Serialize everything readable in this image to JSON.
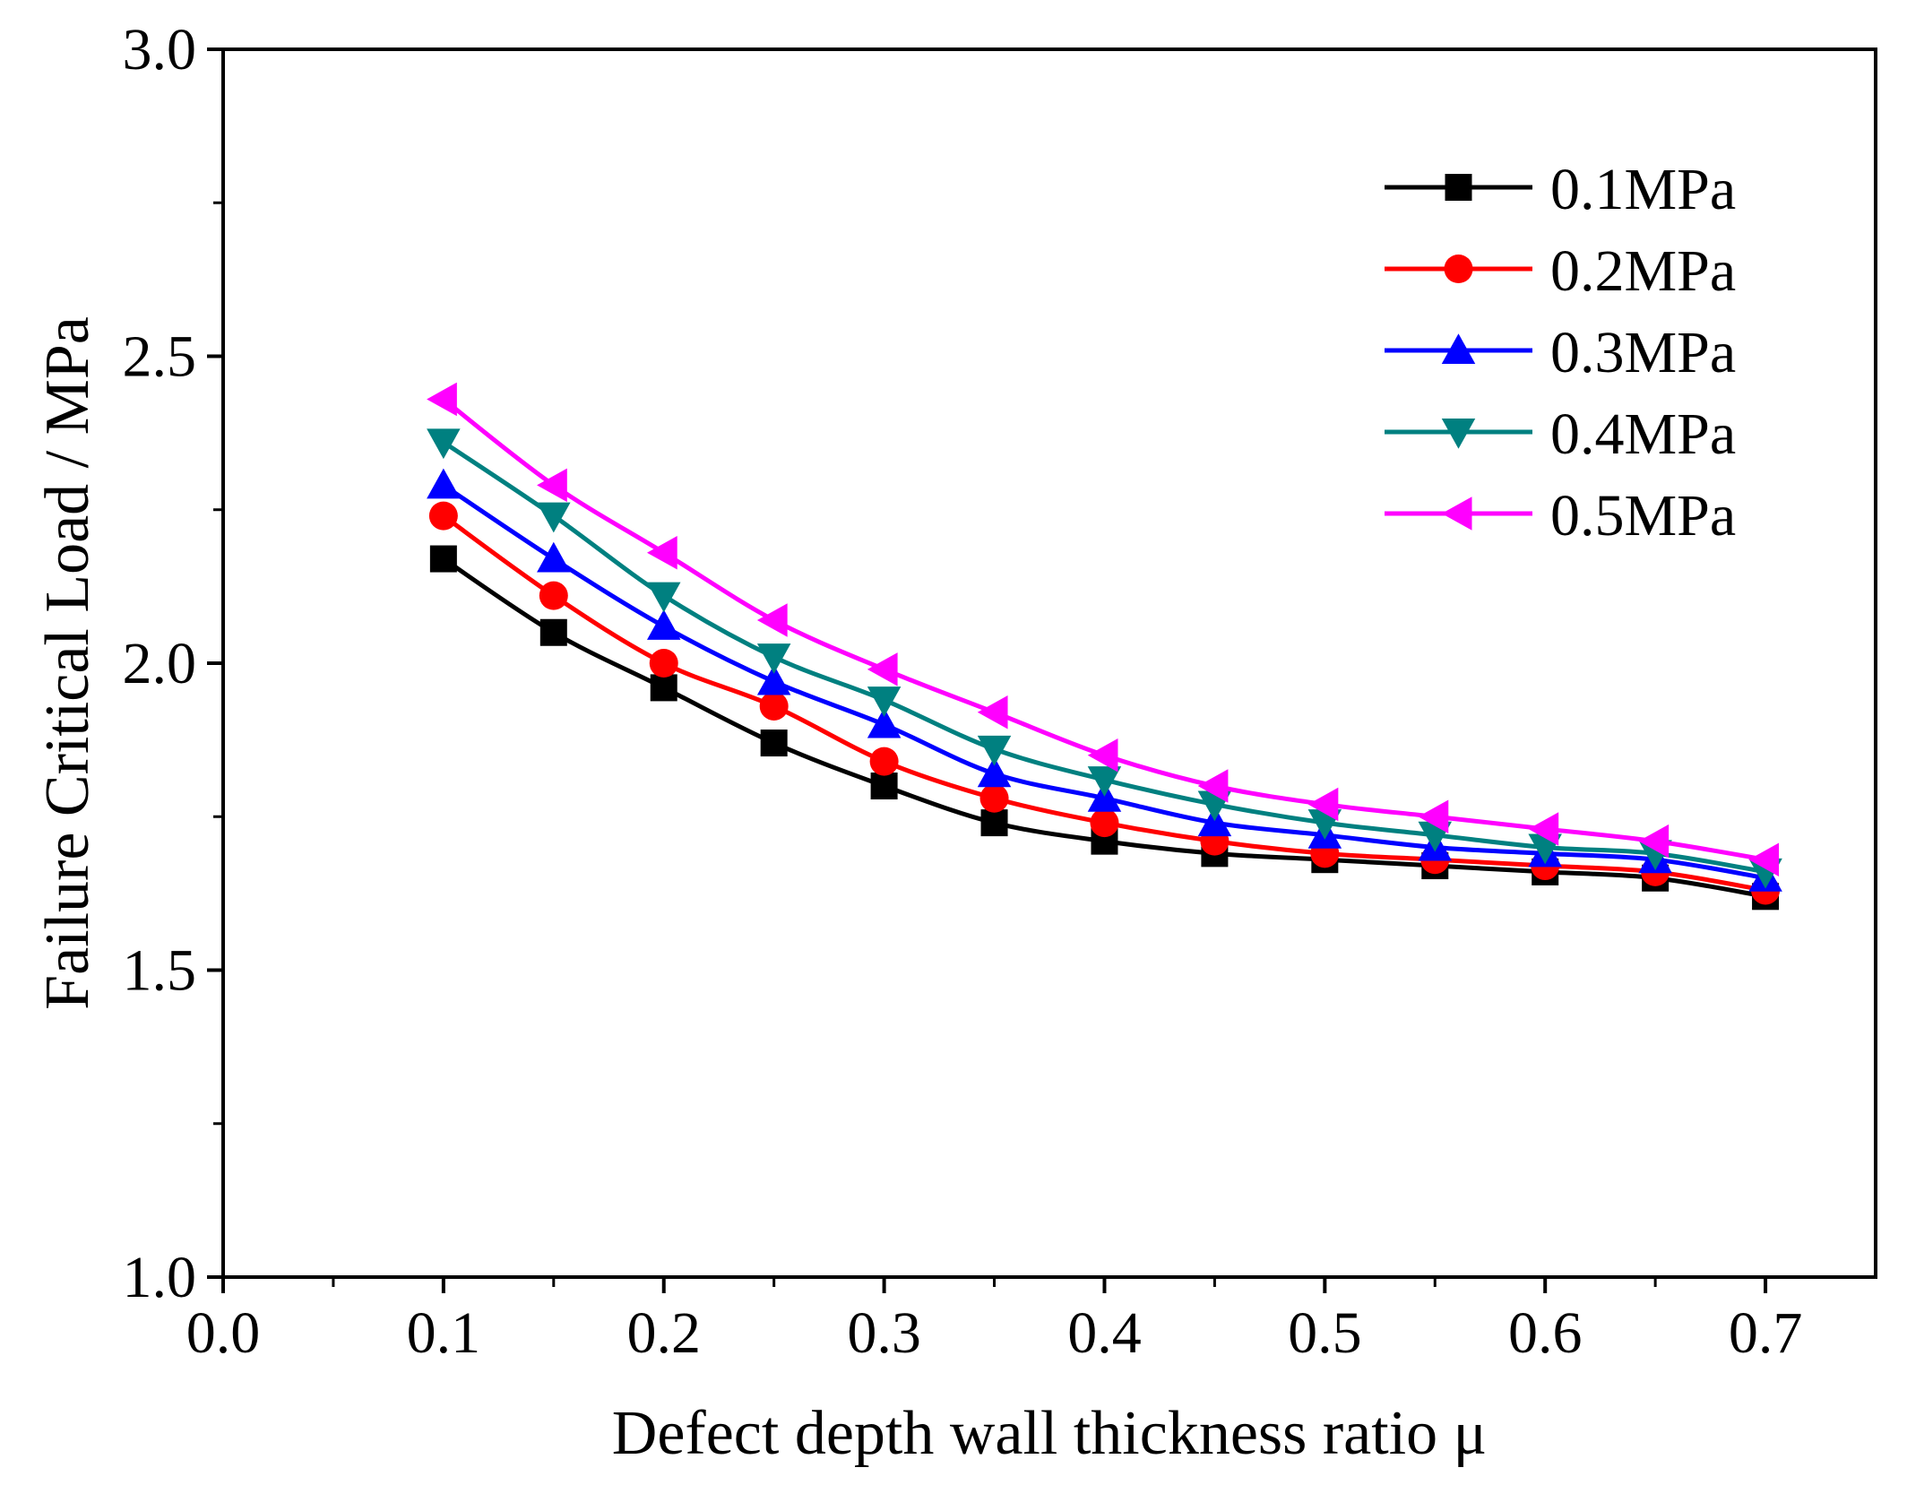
{
  "chart_data": {
    "type": "line",
    "title": "",
    "xlabel": "Defect depth wall thickness ratio μ",
    "ylabel": "Failure Critical Load / MPa",
    "xlim": [
      0.0,
      0.75
    ],
    "ylim": [
      1.0,
      3.0
    ],
    "x_ticks": [
      0.0,
      0.1,
      0.2,
      0.3,
      0.4,
      0.5,
      0.6,
      0.7
    ],
    "x_tick_labels": [
      "0.0",
      "0.1",
      "0.2",
      "0.3",
      "0.4",
      "0.5",
      "0.6",
      "0.7"
    ],
    "y_ticks": [
      1.0,
      1.5,
      2.0,
      2.5,
      3.0
    ],
    "y_tick_labels": [
      "1.0",
      "1.5",
      "2.0",
      "2.5",
      "3.0"
    ],
    "y_minor_ticks": [
      1.25,
      1.75,
      2.25,
      2.75
    ],
    "grid": false,
    "legend_position": "top-right",
    "x": [
      0.1,
      0.15,
      0.2,
      0.25,
      0.3,
      0.35,
      0.4,
      0.45,
      0.5,
      0.55,
      0.6,
      0.65,
      0.7
    ],
    "series": [
      {
        "name": "0.1MPa",
        "color": "#000000",
        "marker": "square",
        "values": [
          2.17,
          2.05,
          1.96,
          1.87,
          1.8,
          1.74,
          1.71,
          1.69,
          1.68,
          1.67,
          1.66,
          1.65,
          1.62
        ]
      },
      {
        "name": "0.2MPa",
        "color": "#ff0000",
        "marker": "circle",
        "values": [
          2.24,
          2.11,
          2.0,
          1.93,
          1.84,
          1.78,
          1.74,
          1.71,
          1.69,
          1.68,
          1.67,
          1.66,
          1.63
        ]
      },
      {
        "name": "0.3MPa",
        "color": "#0000ff",
        "marker": "triangle-up",
        "values": [
          2.29,
          2.17,
          2.06,
          1.97,
          1.9,
          1.82,
          1.78,
          1.74,
          1.72,
          1.7,
          1.69,
          1.68,
          1.65
        ]
      },
      {
        "name": "0.4MPa",
        "color": "#008080",
        "marker": "triangle-down",
        "values": [
          2.36,
          2.24,
          2.11,
          2.01,
          1.94,
          1.86,
          1.81,
          1.77,
          1.74,
          1.72,
          1.7,
          1.69,
          1.66
        ]
      },
      {
        "name": "0.5MPa",
        "color": "#ff00ff",
        "marker": "triangle-left",
        "values": [
          2.43,
          2.29,
          2.18,
          2.07,
          1.99,
          1.92,
          1.85,
          1.8,
          1.77,
          1.75,
          1.73,
          1.71,
          1.68
        ]
      }
    ]
  }
}
